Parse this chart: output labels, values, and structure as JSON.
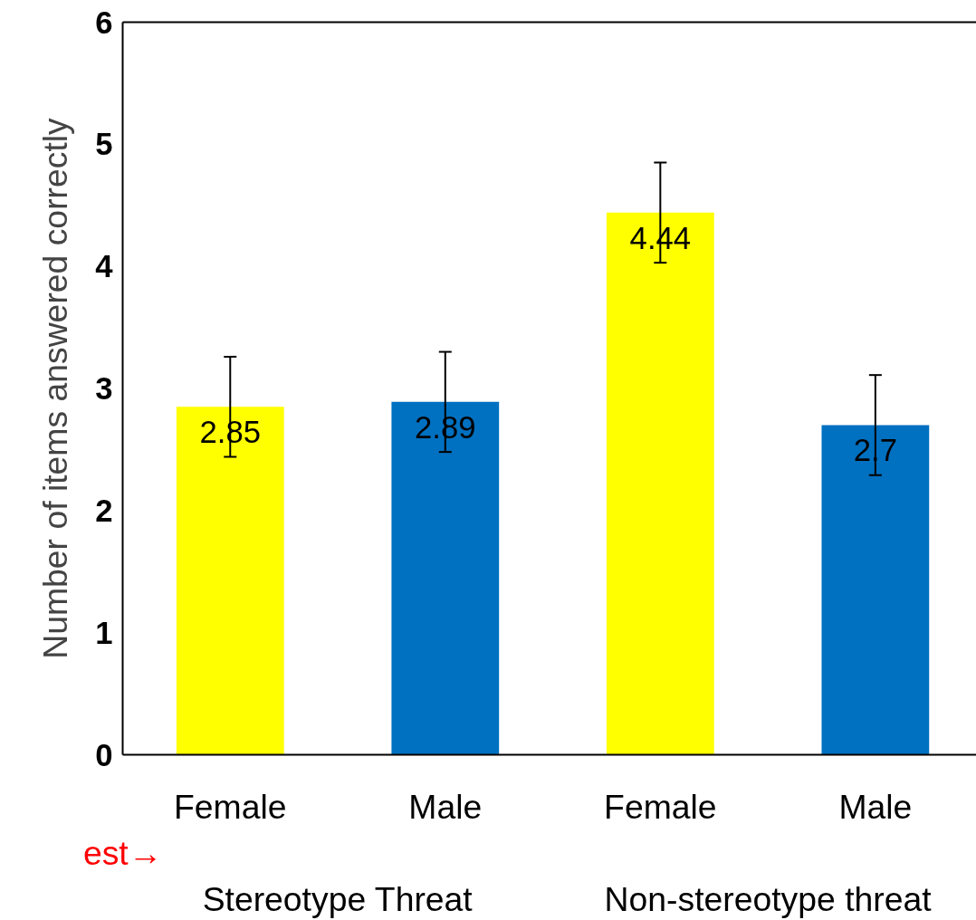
{
  "chart_data": {
    "type": "bar",
    "ylabel": "Number of items answered correctly",
    "categories": [
      "Female",
      "Male",
      "Female",
      "Male"
    ],
    "values": [
      2.85,
      2.89,
      4.44,
      2.7
    ],
    "colors": [
      "#ffff00",
      "#0070c0",
      "#ffff00",
      "#0070c0"
    ],
    "errors": [
      0.41,
      0.41,
      0.41,
      0.41
    ],
    "ylim": [
      0,
      6
    ],
    "yticks": [
      0,
      1,
      2,
      3,
      4,
      5,
      6
    ],
    "data_labels": true,
    "grid": false,
    "annotations": [
      "Stereotype Threat",
      "Non-stereotype threat",
      "est→"
    ]
  }
}
